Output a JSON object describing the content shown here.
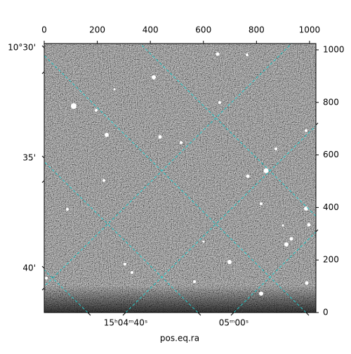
{
  "chart_data": {
    "type": "image",
    "xlabel": "pos.eq.ra",
    "xlim": [
      0,
      1024
    ],
    "xticks": [
      0,
      200,
      400,
      600,
      800,
      1000
    ],
    "ylim": [
      0,
      1024
    ],
    "yticks": [
      0,
      200,
      400,
      600,
      800,
      1000
    ],
    "ra_tick_labels": [
      "15ʰ04ᵐ40ˢ",
      "05ᵐ00ˢ"
    ],
    "dec_tick_labels": [
      "10°30'",
      "35'",
      "40'"
    ],
    "grid_color": "#22cccc"
  }
}
